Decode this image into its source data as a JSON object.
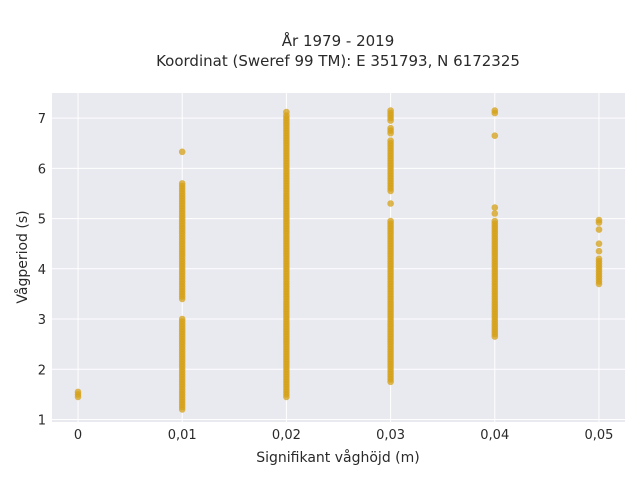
{
  "chart_data": {
    "type": "scatter",
    "title": "År 1979 - 2019",
    "subtitle": "Koordinat (Sweref 99 TM): E 351793, N 6172325",
    "xlabel": "Signifikant våghöjd (m)",
    "ylabel": "Vågperiod (s)",
    "x_ticks": [
      "0",
      "0,01",
      "0,02",
      "0,03",
      "0,04",
      "0,05"
    ],
    "y_ticks": [
      "1",
      "2",
      "3",
      "4",
      "5",
      "6",
      "7"
    ],
    "xlim": [
      -0.0025,
      0.0525
    ],
    "ylim": [
      0.95,
      7.5
    ],
    "grid": true,
    "colors": {
      "marker": "#D4A017",
      "plot_bg": "#E9E9F0",
      "grid": "#ffffff"
    },
    "points": [
      [
        0,
        1.45
      ],
      [
        0,
        1.5
      ],
      [
        0,
        1.55
      ],
      [
        0.01,
        1.2
      ],
      [
        0.01,
        1.3
      ],
      [
        0.01,
        1.4
      ],
      [
        0.01,
        1.5
      ],
      [
        0.01,
        1.6
      ],
      [
        0.01,
        1.7
      ],
      [
        0.01,
        1.8
      ],
      [
        0.01,
        1.9
      ],
      [
        0.01,
        2.0
      ],
      [
        0.01,
        2.1
      ],
      [
        0.01,
        2.2
      ],
      [
        0.01,
        2.3
      ],
      [
        0.01,
        2.4
      ],
      [
        0.01,
        2.5
      ],
      [
        0.01,
        2.6
      ],
      [
        0.01,
        2.7
      ],
      [
        0.01,
        2.8
      ],
      [
        0.01,
        2.9
      ],
      [
        0.01,
        3.0
      ],
      [
        0.01,
        3.4
      ],
      [
        0.01,
        3.5
      ],
      [
        0.01,
        3.6
      ],
      [
        0.01,
        3.7
      ],
      [
        0.01,
        3.8
      ],
      [
        0.01,
        3.9
      ],
      [
        0.01,
        4.0
      ],
      [
        0.01,
        4.1
      ],
      [
        0.01,
        4.2
      ],
      [
        0.01,
        4.3
      ],
      [
        0.01,
        4.4
      ],
      [
        0.01,
        4.5
      ],
      [
        0.01,
        4.6
      ],
      [
        0.01,
        4.7
      ],
      [
        0.01,
        4.8
      ],
      [
        0.01,
        4.9
      ],
      [
        0.01,
        5.0
      ],
      [
        0.01,
        5.1
      ],
      [
        0.01,
        5.2
      ],
      [
        0.01,
        5.3
      ],
      [
        0.01,
        5.4
      ],
      [
        0.01,
        5.5
      ],
      [
        0.01,
        5.6
      ],
      [
        0.01,
        5.7
      ],
      [
        0.01,
        6.33
      ],
      [
        0.02,
        1.45
      ],
      [
        0.02,
        1.55
      ],
      [
        0.02,
        1.65
      ],
      [
        0.02,
        1.75
      ],
      [
        0.02,
        1.85
      ],
      [
        0.02,
        1.95
      ],
      [
        0.02,
        2.05
      ],
      [
        0.02,
        2.15
      ],
      [
        0.02,
        2.25
      ],
      [
        0.02,
        2.35
      ],
      [
        0.02,
        2.45
      ],
      [
        0.02,
        2.55
      ],
      [
        0.02,
        2.65
      ],
      [
        0.02,
        2.75
      ],
      [
        0.02,
        2.85
      ],
      [
        0.02,
        2.95
      ],
      [
        0.02,
        3.05
      ],
      [
        0.02,
        3.15
      ],
      [
        0.02,
        3.25
      ],
      [
        0.02,
        3.35
      ],
      [
        0.02,
        3.45
      ],
      [
        0.02,
        3.55
      ],
      [
        0.02,
        3.65
      ],
      [
        0.02,
        3.75
      ],
      [
        0.02,
        3.85
      ],
      [
        0.02,
        3.95
      ],
      [
        0.02,
        4.05
      ],
      [
        0.02,
        4.15
      ],
      [
        0.02,
        4.25
      ],
      [
        0.02,
        4.35
      ],
      [
        0.02,
        4.45
      ],
      [
        0.02,
        4.55
      ],
      [
        0.02,
        4.65
      ],
      [
        0.02,
        4.75
      ],
      [
        0.02,
        4.85
      ],
      [
        0.02,
        4.95
      ],
      [
        0.02,
        5.05
      ],
      [
        0.02,
        5.15
      ],
      [
        0.02,
        5.25
      ],
      [
        0.02,
        5.35
      ],
      [
        0.02,
        5.45
      ],
      [
        0.02,
        5.55
      ],
      [
        0.02,
        5.65
      ],
      [
        0.02,
        5.75
      ],
      [
        0.02,
        5.85
      ],
      [
        0.02,
        5.95
      ],
      [
        0.02,
        6.05
      ],
      [
        0.02,
        6.15
      ],
      [
        0.02,
        6.25
      ],
      [
        0.02,
        6.35
      ],
      [
        0.02,
        6.45
      ],
      [
        0.02,
        6.55
      ],
      [
        0.02,
        6.65
      ],
      [
        0.02,
        6.75
      ],
      [
        0.02,
        6.85
      ],
      [
        0.02,
        6.95
      ],
      [
        0.02,
        7.05
      ],
      [
        0.02,
        7.12
      ],
      [
        0.03,
        1.75
      ],
      [
        0.03,
        1.85
      ],
      [
        0.03,
        1.95
      ],
      [
        0.03,
        2.05
      ],
      [
        0.03,
        2.15
      ],
      [
        0.03,
        2.25
      ],
      [
        0.03,
        2.35
      ],
      [
        0.03,
        2.45
      ],
      [
        0.03,
        2.55
      ],
      [
        0.03,
        2.65
      ],
      [
        0.03,
        2.75
      ],
      [
        0.03,
        2.85
      ],
      [
        0.03,
        2.95
      ],
      [
        0.03,
        3.05
      ],
      [
        0.03,
        3.15
      ],
      [
        0.03,
        3.25
      ],
      [
        0.03,
        3.35
      ],
      [
        0.03,
        3.45
      ],
      [
        0.03,
        3.55
      ],
      [
        0.03,
        3.65
      ],
      [
        0.03,
        3.75
      ],
      [
        0.03,
        3.85
      ],
      [
        0.03,
        3.95
      ],
      [
        0.03,
        4.05
      ],
      [
        0.03,
        4.15
      ],
      [
        0.03,
        4.25
      ],
      [
        0.03,
        4.35
      ],
      [
        0.03,
        4.45
      ],
      [
        0.03,
        4.55
      ],
      [
        0.03,
        4.65
      ],
      [
        0.03,
        4.75
      ],
      [
        0.03,
        4.85
      ],
      [
        0.03,
        4.95
      ],
      [
        0.03,
        5.3
      ],
      [
        0.03,
        5.55
      ],
      [
        0.03,
        5.65
      ],
      [
        0.03,
        5.75
      ],
      [
        0.03,
        5.85
      ],
      [
        0.03,
        5.95
      ],
      [
        0.03,
        6.05
      ],
      [
        0.03,
        6.15
      ],
      [
        0.03,
        6.25
      ],
      [
        0.03,
        6.35
      ],
      [
        0.03,
        6.45
      ],
      [
        0.03,
        6.55
      ],
      [
        0.03,
        6.7
      ],
      [
        0.03,
        6.8
      ],
      [
        0.03,
        6.95
      ],
      [
        0.03,
        7.05
      ],
      [
        0.03,
        7.15
      ],
      [
        0.04,
        2.65
      ],
      [
        0.04,
        2.75
      ],
      [
        0.04,
        2.85
      ],
      [
        0.04,
        2.95
      ],
      [
        0.04,
        3.05
      ],
      [
        0.04,
        3.15
      ],
      [
        0.04,
        3.25
      ],
      [
        0.04,
        3.35
      ],
      [
        0.04,
        3.45
      ],
      [
        0.04,
        3.55
      ],
      [
        0.04,
        3.65
      ],
      [
        0.04,
        3.75
      ],
      [
        0.04,
        3.85
      ],
      [
        0.04,
        3.95
      ],
      [
        0.04,
        4.05
      ],
      [
        0.04,
        4.15
      ],
      [
        0.04,
        4.25
      ],
      [
        0.04,
        4.35
      ],
      [
        0.04,
        4.45
      ],
      [
        0.04,
        4.55
      ],
      [
        0.04,
        4.65
      ],
      [
        0.04,
        4.75
      ],
      [
        0.04,
        4.85
      ],
      [
        0.04,
        4.95
      ],
      [
        0.04,
        5.1
      ],
      [
        0.04,
        5.22
      ],
      [
        0.04,
        6.65
      ],
      [
        0.04,
        7.1
      ],
      [
        0.04,
        7.15
      ],
      [
        0.05,
        3.7
      ],
      [
        0.05,
        3.8
      ],
      [
        0.05,
        3.9
      ],
      [
        0.05,
        4.0
      ],
      [
        0.05,
        4.1
      ],
      [
        0.05,
        4.2
      ],
      [
        0.05,
        4.35
      ],
      [
        0.05,
        4.5
      ],
      [
        0.05,
        4.78
      ],
      [
        0.05,
        4.92
      ],
      [
        0.05,
        4.97
      ]
    ]
  }
}
